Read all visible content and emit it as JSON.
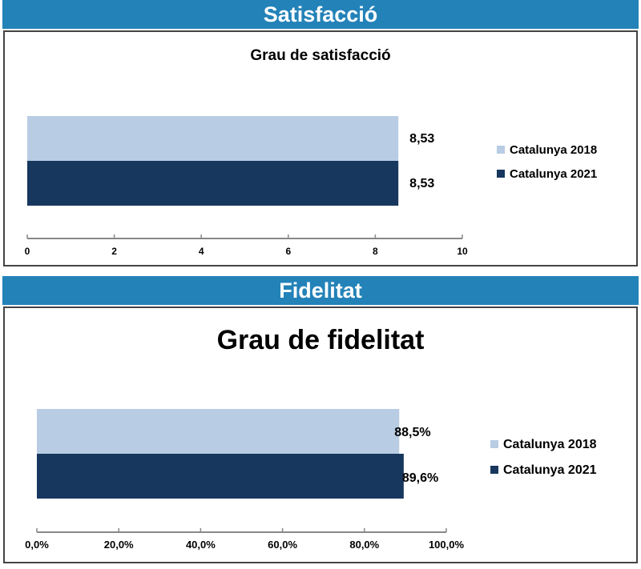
{
  "sections": [
    {
      "header": "Satisfacció"
    },
    {
      "header": "Fidelitat"
    }
  ],
  "chart_data": [
    {
      "type": "bar",
      "orientation": "horizontal",
      "title": "Grau de satisfacció",
      "series": [
        {
          "name": "Catalunya 2018",
          "values": [
            8.53
          ],
          "labels": [
            "8,53"
          ],
          "color": "#b8cce4"
        },
        {
          "name": "Catalunya 2021",
          "values": [
            8.53
          ],
          "labels": [
            "8,53"
          ],
          "color": "#17375e"
        }
      ],
      "xlim": [
        0,
        10
      ],
      "ticks": [
        0,
        2,
        4,
        6,
        8,
        10
      ],
      "tick_labels": [
        "0",
        "2",
        "4",
        "6",
        "8",
        "10"
      ],
      "legend": "right"
    },
    {
      "type": "bar",
      "orientation": "horizontal",
      "title": "Grau de fidelitat",
      "series": [
        {
          "name": "Catalunya 2018",
          "values": [
            88.5
          ],
          "labels": [
            "88,5%"
          ],
          "color": "#b8cce4"
        },
        {
          "name": "Catalunya 2021",
          "values": [
            89.6
          ],
          "labels": [
            "89,6%"
          ],
          "color": "#17375e"
        }
      ],
      "xlim": [
        0,
        100
      ],
      "ticks": [
        0,
        20,
        40,
        60,
        80,
        100
      ],
      "tick_labels": [
        "0,0%",
        "20,0%",
        "40,0%",
        "60,0%",
        "80,0%",
        "100,0%"
      ],
      "legend": "right"
    }
  ]
}
